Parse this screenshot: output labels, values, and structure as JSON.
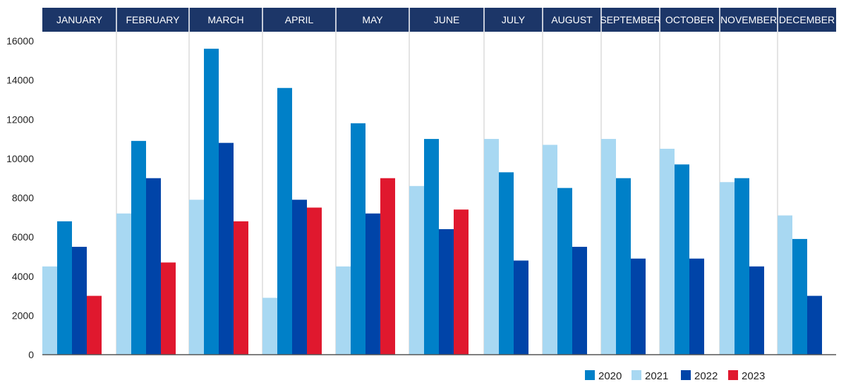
{
  "chart_data": {
    "type": "bar",
    "title": "",
    "xlabel": "",
    "ylabel": "",
    "ylim": [
      0,
      16000
    ],
    "yticks": [
      0,
      2000,
      4000,
      6000,
      8000,
      10000,
      12000,
      14000,
      16000
    ],
    "grid": "vertical separators between months",
    "legend_position": "bottom-right",
    "categories": [
      "JANUARY",
      "FEBRUARY",
      "MARCH",
      "APRIL",
      "MAY",
      "JUNE",
      "JULY",
      "AUGUST",
      "SEPTEMBER",
      "OCTOBER",
      "NOVEMBER",
      "DECEMBER"
    ],
    "legend_order": [
      "2020",
      "2021",
      "2022",
      "2023"
    ],
    "series": [
      {
        "name": "2020",
        "color": "#0080c8",
        "values": [
          6800,
          10900,
          15600,
          13600,
          11800,
          11000,
          null,
          null,
          null,
          null,
          null,
          null
        ]
      },
      {
        "name": "2021",
        "color": "#a8d8f2",
        "values": [
          4500,
          7200,
          7900,
          2900,
          4500,
          8600,
          11000,
          10700,
          11000,
          10500,
          8800,
          7100
        ]
      },
      {
        "name": "2022",
        "color": "#0044a8",
        "values": [
          5500,
          9000,
          10800,
          7900,
          7200,
          6400,
          4800,
          5500,
          4900,
          4900,
          4500,
          3000
        ]
      },
      {
        "name": "2023",
        "color": "#e0182e",
        "values": [
          3000,
          4700,
          6800,
          7500,
          9000,
          7400,
          null,
          null,
          null,
          null,
          null,
          null
        ]
      }
    ],
    "later_months_2020_like_series": [
      {
        "name": "2020",
        "values": [
          null,
          null,
          null,
          null,
          null,
          null,
          9300,
          8500,
          9000,
          9700,
          9000,
          5900
        ]
      }
    ]
  },
  "colors": {
    "header": "#1c3668",
    "separator": "#c8c8c8",
    "axis": "#555555"
  }
}
